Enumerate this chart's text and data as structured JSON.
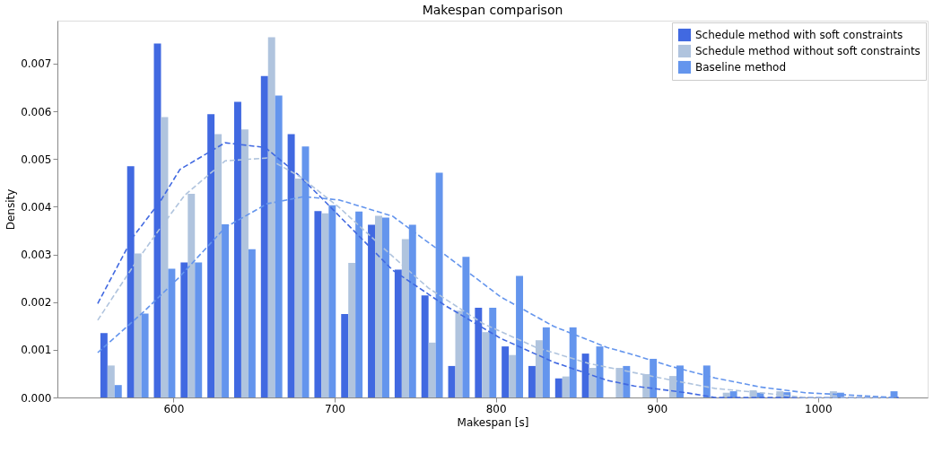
{
  "chart_data": {
    "type": "histogram",
    "title": "Makespan comparison",
    "xlabel": "Makespan [s]",
    "ylabel": "Density",
    "bins": [
      553,
      569.6,
      586.2,
      602.8,
      619.4,
      636,
      652.6,
      669.2,
      685.8,
      702.4,
      719,
      735.6,
      752.2,
      768.8,
      785.4,
      802,
      818.6,
      835.2,
      851.8,
      868.4,
      885,
      901.6,
      918.2,
      934.8,
      951.4,
      968,
      984.6,
      1001.2,
      1017.8,
      1034.4,
      1051
    ],
    "xlim": [
      528,
      1068
    ],
    "xticks": [
      600,
      700,
      800,
      900,
      1000
    ],
    "ylim": [
      0,
      0.0079
    ],
    "yticks": [
      {
        "value": 0,
        "label": "0.000"
      },
      0.001,
      0.002,
      0.003,
      0.004,
      0.005,
      0.006,
      0.007
    ],
    "legend": "top right",
    "grid": false,
    "series": [
      {
        "name": "Schedule method with soft constraints",
        "color": "#4169e1",
        "values": [
          0.00135,
          0.00485,
          0.00742,
          0.00283,
          0.00594,
          0.0062,
          0.00674,
          0.00552,
          0.00391,
          0.00175,
          0.00362,
          0.00268,
          0.00214,
          0.00066,
          0.00188,
          0.00107,
          0.00066,
          0.0004,
          0.00092,
          0,
          0,
          0,
          0,
          0,
          0,
          0,
          0,
          0,
          0,
          0
        ]
      },
      {
        "name": "Schedule method without soft constraints",
        "color": "#b0c4de",
        "values": [
          0.00067,
          0.00302,
          0.00588,
          0.00427,
          0.00552,
          0.00562,
          0.00755,
          0.00459,
          0.00386,
          0.00282,
          0.00381,
          0.00332,
          0.00115,
          0.00182,
          0.00137,
          0.00089,
          0.0012,
          0.00044,
          0.00062,
          0.00062,
          0.00049,
          0.00045,
          0,
          0.0001,
          0.00015,
          0.00013,
          0,
          0.00013,
          0,
          0
        ]
      },
      {
        "name": "Baseline method",
        "color": "#6495ed",
        "values": [
          0.00026,
          0.00176,
          0.0027,
          0.00283,
          0.00363,
          0.00311,
          0.00633,
          0.00526,
          0.00403,
          0.0039,
          0.00377,
          0.00362,
          0.00471,
          0.00295,
          0.00188,
          0.00255,
          0.00147,
          0.00147,
          0.00107,
          0.00066,
          0.00081,
          0.00067,
          0.00067,
          0.00013,
          0.0001,
          0.00011,
          0,
          0.0001,
          0,
          0.00013
        ]
      },
      {
        "type": "line",
        "line_style": "dashed",
        "color": "#4169e1",
        "x": [
          553,
          575,
          592,
          604,
          632,
          657,
          677,
          692,
          703,
          736,
          769,
          803,
          836,
          869,
          886,
          918,
          936,
          1050
        ],
        "values": [
          0.00197,
          0.00337,
          0.00412,
          0.00478,
          0.00534,
          0.00524,
          0.00468,
          0.00418,
          0.0038,
          0.00267,
          0.00192,
          0.00124,
          0.00074,
          0.00036,
          0.00024,
          0.0001,
          0,
          0
        ]
      },
      {
        "type": "line",
        "line_style": "dashed",
        "color": "#b0c4de",
        "x": [
          553,
          575,
          592,
          607,
          632,
          658,
          679,
          703,
          731,
          758,
          792,
          825,
          858,
          886,
          908,
          936,
          964,
          992,
          1047
        ],
        "values": [
          0.00162,
          0.00275,
          0.00356,
          0.00424,
          0.00496,
          0.00502,
          0.00462,
          0.00398,
          0.00311,
          0.0023,
          0.00155,
          0.00105,
          0.00071,
          0.00052,
          0.00037,
          0.00019,
          0.0001,
          0,
          0
        ]
      },
      {
        "type": "line",
        "line_style": "dashed",
        "color": "#6495ed",
        "x": [
          553,
          581,
          603,
          632,
          658,
          681,
          703,
          736,
          769,
          803,
          836,
          869,
          886,
          908,
          936,
          964,
          992,
          1047
        ],
        "values": [
          0.00094,
          0.00178,
          0.0025,
          0.00356,
          0.00406,
          0.00421,
          0.00414,
          0.0038,
          0.00298,
          0.00211,
          0.00149,
          0.00105,
          0.00089,
          0.00066,
          0.00041,
          0.00022,
          0.0001,
          0
        ]
      }
    ]
  }
}
